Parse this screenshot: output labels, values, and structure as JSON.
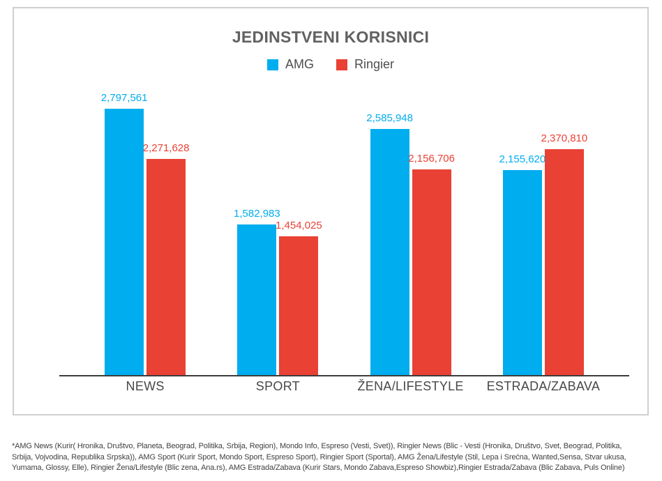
{
  "chart_data": {
    "type": "bar",
    "title": "JEDINSTVENI KORISNICI",
    "categories": [
      "NEWS",
      "SPORT",
      "ŽENA/LIFESTYLE",
      "ESTRADA/ZABAVA"
    ],
    "series": [
      {
        "name": "AMG",
        "color": "#00ADEF",
        "values": [
          2797561,
          1582983,
          2585948,
          2155620
        ],
        "labels": [
          "2,797,561",
          "1,582,983",
          "2,585,948",
          "2,155,620"
        ]
      },
      {
        "name": "Ringier",
        "color": "#E94134",
        "values": [
          2271628,
          1454025,
          2156706,
          2370810
        ],
        "labels": [
          "2,271,628",
          "1,454,025",
          "2,156,706",
          "2,370,810"
        ]
      }
    ],
    "ylim": [
      0,
      2900000
    ],
    "xlabel": "",
    "ylabel": "",
    "grid": false,
    "legend_position": "top",
    "axis_line_color": "#3c3c3c"
  },
  "footnote": {
    "lines": [
      "*AMG News (Kurir( Hronika, Društvo, Planeta, Beograd, Politika, Srbija, Region), Mondo Info, Espreso (Vesti, Svet)), Ringier News (Blic - Vesti (Hronika, Društvo, Svet, Beograd, Politika,",
      "Srbija, Vojvodina, Republika Srpska)), AMG Sport (Kurir Sport, Mondo Sport, Espreso Sport), Ringier Sport (Sportal), AMG Žena/Lifestyle (Stil, Lepa i Srećna, Wanted,Sensa, Stvar ukusa,",
      "Yumama, Glossy, Elle), Ringier Žena/Lifestyle (Blic zena, Ana.rs), AMG Estrada/Zabava (Kurir Stars, Mondo Zabava,Espreso Showbiz),Ringier Estrada/Zabava (Blic Zabava, Puls Online)"
    ]
  }
}
